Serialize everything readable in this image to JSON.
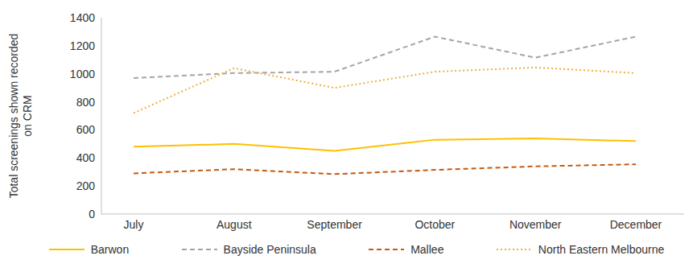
{
  "chart_data": {
    "type": "line",
    "y_label": "Total screenings shown recorded on CRM",
    "categories": [
      "July",
      "August",
      "September",
      "October",
      "November",
      "December"
    ],
    "series": [
      {
        "name": "Barwon",
        "color": "#FFC000",
        "line_style": "solid",
        "values": [
          480,
          500,
          450,
          530,
          540,
          520
        ]
      },
      {
        "name": "Bayside Peninsula",
        "color": "#A5A5A5",
        "line_style": "dashed",
        "values": [
          970,
          1005,
          1015,
          1265,
          1115,
          1265
        ]
      },
      {
        "name": "Mallee",
        "color": "#C55A11",
        "line_style": "dashed",
        "values": [
          290,
          320,
          285,
          315,
          340,
          355
        ]
      },
      {
        "name": "North Eastern Melbourne",
        "color": "#EDB040",
        "line_style": "dotted",
        "values": [
          720,
          1040,
          900,
          1015,
          1045,
          1005
        ]
      }
    ],
    "ylim": [
      0,
      1400
    ],
    "yticks": [
      0,
      200,
      400,
      600,
      800,
      1000,
      1200,
      1400
    ],
    "grid": false,
    "legend": "bottom"
  }
}
